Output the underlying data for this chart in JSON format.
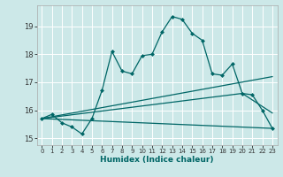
{
  "xlabel": "Humidex (Indice chaleur)",
  "background_color": "#cce8e8",
  "line_color": "#006666",
  "grid_color": "#ffffff",
  "xlim": [
    -0.5,
    23.5
  ],
  "ylim": [
    14.75,
    19.75
  ],
  "yticks": [
    15,
    16,
    17,
    18,
    19
  ],
  "xticks": [
    0,
    1,
    2,
    3,
    4,
    5,
    6,
    7,
    8,
    9,
    10,
    11,
    12,
    13,
    14,
    15,
    16,
    17,
    18,
    19,
    20,
    21,
    22,
    23
  ],
  "series": [
    {
      "x": [
        0,
        1,
        2,
        3,
        4,
        5,
        6,
        7,
        8,
        9,
        10,
        11,
        12,
        13,
        14,
        15,
        16,
        17,
        18,
        19,
        20,
        21,
        22,
        23
      ],
      "y": [
        15.7,
        15.85,
        15.55,
        15.4,
        15.15,
        15.7,
        16.7,
        18.1,
        17.4,
        17.3,
        17.95,
        18.0,
        18.8,
        19.35,
        19.25,
        18.75,
        18.5,
        17.3,
        17.25,
        17.65,
        16.6,
        16.55,
        16.0,
        15.35
      ],
      "marker": "D",
      "markersize": 2.0,
      "linewidth": 0.9
    },
    {
      "x": [
        0,
        23
      ],
      "y": [
        15.7,
        17.2
      ],
      "marker": null,
      "linewidth": 0.9
    },
    {
      "x": [
        0,
        20,
        23
      ],
      "y": [
        15.7,
        16.6,
        15.9
      ],
      "marker": null,
      "linewidth": 0.9
    },
    {
      "x": [
        0,
        23
      ],
      "y": [
        15.7,
        15.35
      ],
      "marker": null,
      "linewidth": 0.9
    }
  ]
}
